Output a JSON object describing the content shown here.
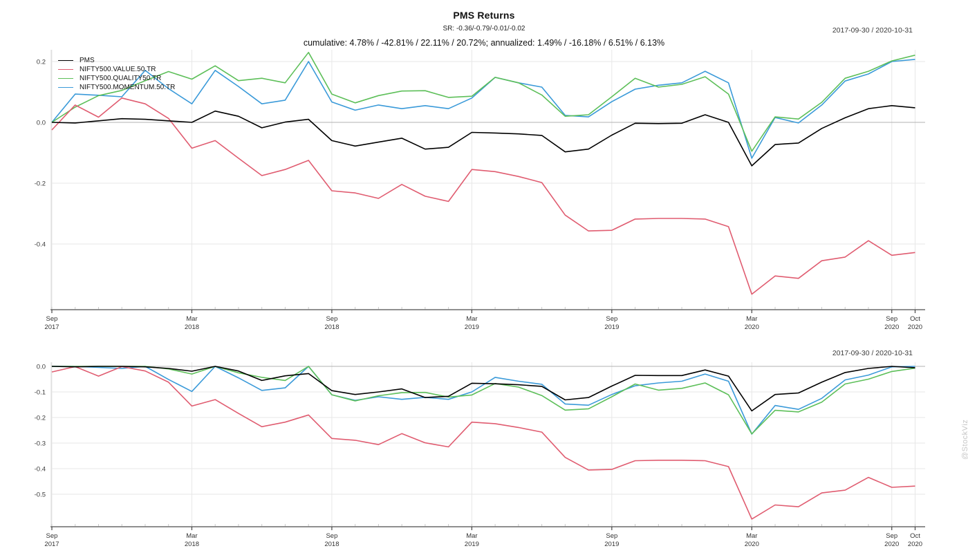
{
  "header": {
    "title": "PMS Returns",
    "subtitle": "SR: -0.36/-0.79/-0.01/-0.02",
    "stats_line": "cumulative: 4.78% / -42.81% / 22.11% / 20.72%; annualized: 1.49% / -16.18% / 6.51% / 6.13%",
    "date_range_top": "2017-09-30 / 2020-10-31",
    "date_range_bottom": "2017-09-30 / 2020-10-31"
  },
  "watermark": "@StockViz",
  "colors": {
    "pms": "#000000",
    "value": "#e05c70",
    "quality": "#5dbf59",
    "momentum": "#3a9ad9",
    "grid": "#e7e7e7",
    "zero_line": "#b0b0b0",
    "axis": "#7f7f7f",
    "tick": "#444444",
    "minor_tick": "#c9c9c9",
    "tick_label": "#333333",
    "border": "#d9d9d9"
  },
  "chart_data": [
    {
      "type": "line",
      "panel": "cumulative-returns",
      "grid": true,
      "legend_position": "top-left",
      "x": [
        "2017-09",
        "2017-10",
        "2017-11",
        "2017-12",
        "2018-01",
        "2018-02",
        "2018-03",
        "2018-04",
        "2018-05",
        "2018-06",
        "2018-07",
        "2018-08",
        "2018-09",
        "2018-10",
        "2018-11",
        "2018-12",
        "2019-01",
        "2019-02",
        "2019-03",
        "2019-04",
        "2019-05",
        "2019-06",
        "2019-07",
        "2019-08",
        "2019-09",
        "2019-10",
        "2019-11",
        "2019-12",
        "2020-01",
        "2020-02",
        "2020-03",
        "2020-04",
        "2020-05",
        "2020-06",
        "2020-07",
        "2020-08",
        "2020-09",
        "2020-10"
      ],
      "x_major_ticks": [
        {
          "index": 0,
          "month": "Sep",
          "year": "2017"
        },
        {
          "index": 6,
          "month": "Mar",
          "year": "2018"
        },
        {
          "index": 12,
          "month": "Sep",
          "year": "2018"
        },
        {
          "index": 18,
          "month": "Mar",
          "year": "2019"
        },
        {
          "index": 24,
          "month": "Sep",
          "year": "2019"
        },
        {
          "index": 30,
          "month": "Mar",
          "year": "2020"
        },
        {
          "index": 36,
          "month": "Sep",
          "year": "2020"
        },
        {
          "index": 37,
          "month": "Oct",
          "year": "2020"
        }
      ],
      "yticks": [
        {
          "v": 0.2,
          "label": "0.2"
        },
        {
          "v": 0.0,
          "label": "0.0"
        },
        {
          "v": -0.2,
          "label": "-0.2"
        },
        {
          "v": -0.4,
          "label": "-0.4"
        }
      ],
      "ylim": [
        -0.615,
        0.24
      ],
      "series": [
        {
          "name": "PMS",
          "color": "#000000",
          "values": [
            0.0,
            -0.002,
            0.005,
            0.012,
            0.01,
            0.005,
            0.0,
            0.037,
            0.02,
            -0.018,
            0.001,
            0.01,
            -0.06,
            -0.078,
            -0.065,
            -0.052,
            -0.088,
            -0.082,
            -0.033,
            -0.035,
            -0.038,
            -0.043,
            -0.097,
            -0.088,
            -0.042,
            -0.003,
            -0.004,
            -0.003,
            0.025,
            0.0,
            -0.143,
            -0.073,
            -0.068,
            -0.02,
            0.015,
            0.045,
            0.055,
            0.048
          ]
        },
        {
          "name": "NIFTY500.VALUE.50.TR",
          "color": "#e05c70",
          "values": [
            -0.025,
            0.057,
            0.017,
            0.08,
            0.061,
            0.013,
            -0.085,
            -0.06,
            -0.118,
            -0.175,
            -0.155,
            -0.125,
            -0.225,
            -0.232,
            -0.25,
            -0.204,
            -0.243,
            -0.26,
            -0.155,
            -0.162,
            -0.178,
            -0.198,
            -0.305,
            -0.357,
            -0.355,
            -0.318,
            -0.316,
            -0.316,
            -0.318,
            -0.343,
            -0.565,
            -0.505,
            -0.513,
            -0.455,
            -0.443,
            -0.389,
            -0.437,
            -0.428
          ]
        },
        {
          "name": "NIFTY500.QUALITY50.TR",
          "color": "#5dbf59",
          "values": [
            0.0,
            0.05,
            0.088,
            0.105,
            0.137,
            0.167,
            0.142,
            0.186,
            0.137,
            0.145,
            0.13,
            0.23,
            0.093,
            0.064,
            0.088,
            0.103,
            0.104,
            0.082,
            0.086,
            0.148,
            0.13,
            0.09,
            0.02,
            0.025,
            0.084,
            0.145,
            0.116,
            0.125,
            0.15,
            0.093,
            -0.095,
            0.018,
            0.011,
            0.066,
            0.145,
            0.168,
            0.202,
            0.221
          ]
        },
        {
          "name": "NIFTY500.MOMENTUM.50.TR",
          "color": "#3a9ad9",
          "values": [
            0.0,
            0.093,
            0.089,
            0.084,
            0.171,
            0.111,
            0.061,
            0.171,
            0.118,
            0.061,
            0.073,
            0.2,
            0.067,
            0.04,
            0.057,
            0.045,
            0.055,
            0.045,
            0.08,
            0.148,
            0.13,
            0.116,
            0.023,
            0.018,
            0.068,
            0.109,
            0.122,
            0.13,
            0.168,
            0.13,
            -0.118,
            0.016,
            -0.002,
            0.057,
            0.136,
            0.159,
            0.2,
            0.207
          ]
        }
      ]
    },
    {
      "type": "line",
      "panel": "drawdowns",
      "grid": true,
      "legend_position": "none",
      "x": [
        "2017-09",
        "2017-10",
        "2017-11",
        "2017-12",
        "2018-01",
        "2018-02",
        "2018-03",
        "2018-04",
        "2018-05",
        "2018-06",
        "2018-07",
        "2018-08",
        "2018-09",
        "2018-10",
        "2018-11",
        "2018-12",
        "2019-01",
        "2019-02",
        "2019-03",
        "2019-04",
        "2019-05",
        "2019-06",
        "2019-07",
        "2019-08",
        "2019-09",
        "2019-10",
        "2019-11",
        "2019-12",
        "2020-01",
        "2020-02",
        "2020-03",
        "2020-04",
        "2020-05",
        "2020-06",
        "2020-07",
        "2020-08",
        "2020-09",
        "2020-10"
      ],
      "x_major_ticks": [
        {
          "index": 0,
          "month": "Sep",
          "year": "2017"
        },
        {
          "index": 6,
          "month": "Mar",
          "year": "2018"
        },
        {
          "index": 12,
          "month": "Sep",
          "year": "2018"
        },
        {
          "index": 18,
          "month": "Mar",
          "year": "2019"
        },
        {
          "index": 24,
          "month": "Sep",
          "year": "2019"
        },
        {
          "index": 30,
          "month": "Mar",
          "year": "2020"
        },
        {
          "index": 36,
          "month": "Sep",
          "year": "2020"
        },
        {
          "index": 37,
          "month": "Oct",
          "year": "2020"
        }
      ],
      "yticks": [
        {
          "v": 0.0,
          "label": "0.0"
        },
        {
          "v": -0.1,
          "label": "-0.1"
        },
        {
          "v": -0.2,
          "label": "-0.2"
        },
        {
          "v": -0.3,
          "label": "-0.3"
        },
        {
          "v": -0.4,
          "label": "-0.4"
        },
        {
          "v": -0.5,
          "label": "-0.5"
        }
      ],
      "ylim": [
        -0.627,
        0.016
      ],
      "series": [
        {
          "name": "PMS",
          "color": "#000000",
          "values": [
            0.0,
            -0.002,
            0.0,
            0.0,
            -0.002,
            -0.008,
            -0.019,
            0.0,
            -0.018,
            -0.055,
            -0.037,
            -0.028,
            -0.095,
            -0.11,
            -0.1,
            -0.088,
            -0.122,
            -0.117,
            -0.066,
            -0.068,
            -0.072,
            -0.078,
            -0.131,
            -0.122,
            -0.077,
            -0.035,
            -0.036,
            -0.036,
            -0.014,
            -0.038,
            -0.174,
            -0.11,
            -0.104,
            -0.062,
            -0.024,
            -0.008,
            0.0,
            -0.005
          ]
        },
        {
          "name": "NIFTY500.VALUE.50.TR",
          "color": "#e05c70",
          "values": [
            -0.022,
            -0.001,
            -0.038,
            -0.001,
            -0.018,
            -0.062,
            -0.155,
            -0.13,
            -0.184,
            -0.236,
            -0.218,
            -0.19,
            -0.282,
            -0.289,
            -0.306,
            -0.263,
            -0.299,
            -0.315,
            -0.218,
            -0.224,
            -0.239,
            -0.257,
            -0.356,
            -0.405,
            -0.403,
            -0.369,
            -0.367,
            -0.367,
            -0.369,
            -0.392,
            -0.597,
            -0.542,
            -0.549,
            -0.495,
            -0.484,
            -0.434,
            -0.473,
            -0.468
          ]
        },
        {
          "name": "NIFTY500.QUALITY50.TR",
          "color": "#5dbf59",
          "values": [
            0.0,
            0.0,
            0.0,
            0.0,
            0.0,
            -0.01,
            -0.03,
            0.0,
            -0.025,
            -0.043,
            -0.055,
            0.0,
            -0.111,
            -0.135,
            -0.115,
            -0.103,
            -0.102,
            -0.12,
            -0.112,
            -0.067,
            -0.081,
            -0.114,
            -0.171,
            -0.166,
            -0.119,
            -0.069,
            -0.093,
            -0.086,
            -0.065,
            -0.111,
            -0.264,
            -0.172,
            -0.178,
            -0.14,
            -0.069,
            -0.05,
            -0.02,
            -0.007
          ]
        },
        {
          "name": "NIFTY500.MOMENTUM.50.TR",
          "color": "#3a9ad9",
          "values": [
            0.0,
            0.0,
            -0.004,
            -0.008,
            0.0,
            -0.051,
            -0.098,
            0.0,
            -0.045,
            -0.094,
            -0.084,
            0.0,
            -0.111,
            -0.133,
            -0.119,
            -0.129,
            -0.121,
            -0.129,
            -0.1,
            -0.043,
            -0.058,
            -0.07,
            -0.147,
            -0.152,
            -0.11,
            -0.076,
            -0.065,
            -0.058,
            -0.03,
            -0.058,
            -0.265,
            -0.153,
            -0.168,
            -0.125,
            -0.053,
            -0.034,
            -0.002,
            0.0
          ]
        }
      ]
    }
  ]
}
